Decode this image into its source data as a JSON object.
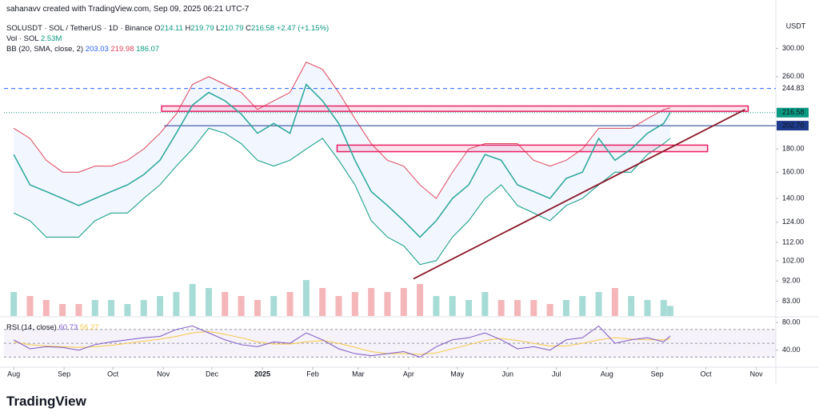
{
  "header": {
    "credit": "sahanavv created with TradingView.com, Sep 09, 2025 06:21 UTC-7"
  },
  "chart_data": {
    "type": "line",
    "symbol": "SOLUSDT · SOL / TetherUS · 1D · Binance",
    "ohlc": [
      {
        "label": "O",
        "value": 214.11
      },
      {
        "label": "H",
        "value": 219.79
      },
      {
        "label": "L",
        "value": 210.79
      },
      {
        "label": "C",
        "value": 216.58
      }
    ],
    "change": "+2.47 (+1.15%)",
    "volume_label": "Vol · SOL",
    "volume_value_label": "2.53M",
    "bb_label": "BB (20, SMA, close, 2)",
    "bb_values": [
      203.03,
      219.98,
      186.07
    ],
    "bb_value_colors": [
      "#2962ff",
      "#e0455a",
      "#089981"
    ],
    "x": [
      0,
      10,
      20,
      30,
      40,
      50,
      60,
      70,
      80,
      90,
      100,
      110,
      120,
      130,
      140,
      150,
      160,
      170,
      180,
      190,
      200,
      210,
      220,
      230,
      240,
      250,
      260,
      270,
      280,
      290,
      300,
      310,
      320,
      330,
      340,
      350,
      360,
      370,
      380,
      390,
      400,
      404
    ],
    "xlim": [
      -6,
      469
    ],
    "xticks": [
      {
        "value": 0,
        "label": "Aug"
      },
      {
        "value": 31,
        "label": "Sep"
      },
      {
        "value": 61,
        "label": "Oct"
      },
      {
        "value": 92,
        "label": "Nov"
      },
      {
        "value": 122,
        "label": "Dec"
      },
      {
        "value": 153,
        "label": "2025"
      },
      {
        "value": 184,
        "label": "Feb"
      },
      {
        "value": 212,
        "label": "Mar"
      },
      {
        "value": 243,
        "label": "Apr"
      },
      {
        "value": 273,
        "label": "May"
      },
      {
        "value": 304,
        "label": "Jun"
      },
      {
        "value": 334,
        "label": "Jul"
      },
      {
        "value": 365,
        "label": "Aug"
      },
      {
        "value": 396,
        "label": "Sep"
      },
      {
        "value": 426,
        "label": "Oct"
      },
      {
        "value": 457,
        "label": "Nov"
      }
    ],
    "ylim": [
      77,
      354
    ],
    "log_scale": true,
    "y_unit": "USDT",
    "yticks": [
      {
        "value": 300,
        "label": "300.00"
      },
      {
        "value": 260,
        "label": "260.00"
      },
      {
        "value": 180,
        "label": "180.00"
      },
      {
        "value": 160,
        "label": "160.00"
      },
      {
        "value": 140,
        "label": "140.00"
      },
      {
        "value": 124,
        "label": "124.00"
      },
      {
        "value": 112,
        "label": "112.00"
      },
      {
        "value": 102,
        "label": "102.00"
      },
      {
        "value": 92,
        "label": "92.00"
      },
      {
        "value": 83,
        "label": "83.00"
      }
    ],
    "price": {
      "color": "#26a69a",
      "values": [
        175,
        150,
        145,
        140,
        135,
        140,
        145,
        150,
        158,
        170,
        195,
        225,
        240,
        230,
        215,
        195,
        205,
        195,
        250,
        230,
        205,
        170,
        145,
        135,
        125,
        115,
        125,
        140,
        150,
        175,
        170,
        150,
        145,
        140,
        155,
        160,
        190,
        170,
        180,
        195,
        205,
        216.58
      ]
    },
    "bb_upper": {
      "color": "#e0455a",
      "values": [
        200,
        190,
        170,
        160,
        160,
        165,
        165,
        170,
        180,
        195,
        215,
        250,
        260,
        250,
        240,
        220,
        230,
        240,
        280,
        270,
        240,
        210,
        185,
        170,
        165,
        150,
        140,
        160,
        180,
        185,
        185,
        185,
        170,
        165,
        170,
        180,
        200,
        200,
        200,
        210,
        220,
        222
      ]
    },
    "bb_lower": {
      "color": "#089981",
      "values": [
        130,
        125,
        115,
        115,
        115,
        125,
        130,
        130,
        140,
        150,
        165,
        180,
        200,
        195,
        185,
        170,
        165,
        170,
        180,
        190,
        170,
        150,
        125,
        115,
        110,
        100,
        102,
        115,
        125,
        140,
        150,
        135,
        130,
        125,
        135,
        140,
        150,
        160,
        160,
        175,
        185,
        190
      ]
    },
    "volume": {
      "up_color": "#a7dcd6",
      "down_color": "#f4b6b9",
      "values": [
        6,
        5,
        4,
        3,
        3,
        4,
        4,
        3,
        4,
        5,
        6,
        8,
        7,
        6,
        5,
        4,
        5,
        6,
        9,
        7,
        5,
        6,
        7,
        6,
        7,
        8,
        5,
        5,
        4,
        6,
        4,
        4,
        4,
        3,
        4,
        5,
        6,
        7,
        5,
        4,
        4,
        2.53
      ]
    },
    "levels": [
      {
        "value": 244.83,
        "color": "#2962ff",
        "style": "dashed"
      },
      {
        "value": 216.58,
        "color": "#089981",
        "style": "dotted"
      },
      {
        "value": 202.7,
        "label": "202.70",
        "color": "#1e3a8a",
        "style": "solid"
      }
    ],
    "zones": [
      {
        "from": 218,
        "to": 224,
        "x": [
          91,
          452
        ],
        "color": "#e91e63"
      },
      {
        "from": 177.6,
        "to": 183.6,
        "x": [
          199,
          427
        ],
        "color": "#e91e63"
      }
    ],
    "trendline": {
      "x": [
        246,
        450
      ],
      "values": [
        93,
        220
      ],
      "color": "#8b1a2a"
    },
    "rsi": {
      "label": "RSI (14, close)",
      "value": 60.73,
      "ma_value": 56.27,
      "color": "#7e57c2",
      "ma_color": "#f7c948",
      "values": [
        55,
        42,
        45,
        44,
        40,
        48,
        52,
        55,
        58,
        60,
        70,
        75,
        65,
        55,
        48,
        45,
        52,
        50,
        65,
        55,
        42,
        35,
        32,
        35,
        38,
        30,
        45,
        55,
        58,
        65,
        55,
        42,
        45,
        40,
        55,
        58,
        75,
        50,
        55,
        58,
        52,
        60.73
      ],
      "ma": [
        52,
        48,
        46,
        45,
        44,
        45,
        47,
        50,
        53,
        56,
        60,
        65,
        67,
        63,
        58,
        52,
        49,
        49,
        52,
        54,
        50,
        44,
        38,
        35,
        35,
        34,
        36,
        42,
        48,
        54,
        57,
        54,
        50,
        46,
        46,
        50,
        55,
        58,
        56,
        55,
        55,
        56.27
      ],
      "ylim": [
        20,
        86
      ],
      "yticks": [
        {
          "value": 80,
          "label": "80.00"
        },
        {
          "value": 40,
          "label": "40.00"
        }
      ],
      "bands": [
        70,
        50,
        30
      ]
    }
  },
  "logo": "TradingView"
}
